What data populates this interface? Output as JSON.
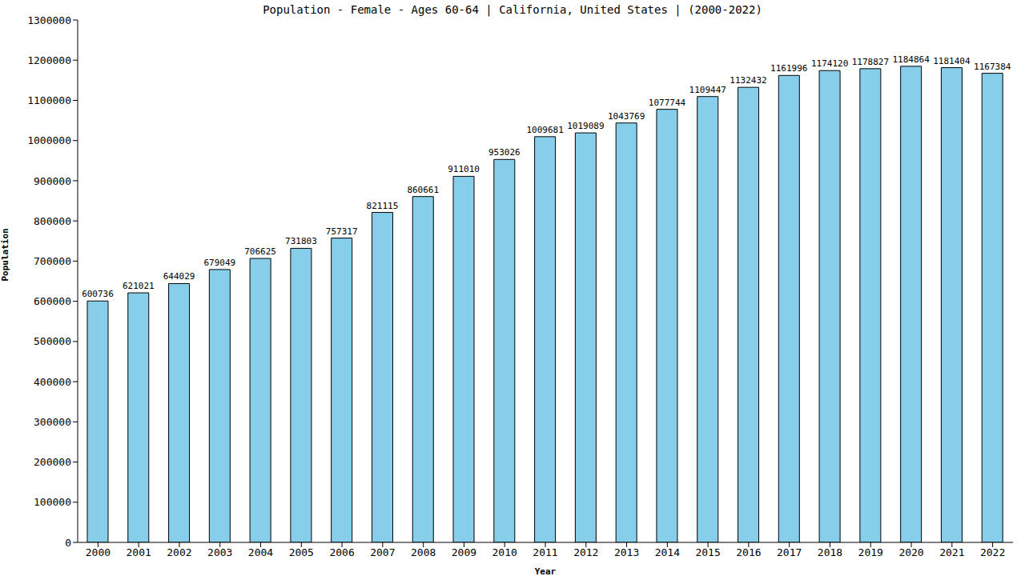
{
  "chart_data": {
    "type": "bar",
    "title": "Population - Female - Ages 60-64 | California, United States |  (2000-2022)",
    "x_label": "Year",
    "y_label": "Population",
    "categories": [
      "2000",
      "2001",
      "2002",
      "2003",
      "2004",
      "2005",
      "2006",
      "2007",
      "2008",
      "2009",
      "2010",
      "2011",
      "2012",
      "2013",
      "2014",
      "2015",
      "2016",
      "2017",
      "2018",
      "2019",
      "2020",
      "2021",
      "2022"
    ],
    "values": [
      600736,
      621021,
      644029,
      679049,
      706625,
      731803,
      757317,
      821115,
      860661,
      911010,
      953026,
      1009681,
      1019089,
      1043769,
      1077744,
      1109447,
      1132432,
      1161996,
      1174120,
      1178827,
      1184864,
      1181404,
      1167384
    ],
    "color": "#87ceeb",
    "ylim": [
      0,
      1300000
    ],
    "yticks": [
      0,
      100000,
      200000,
      300000,
      400000,
      500000,
      600000,
      700000,
      800000,
      900000,
      1000000,
      1100000,
      1200000,
      1300000
    ],
    "grid": false,
    "data_labels": true
  }
}
